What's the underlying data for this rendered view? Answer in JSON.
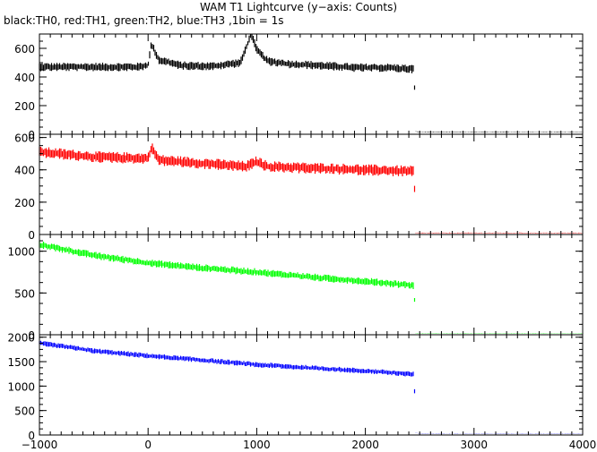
{
  "chart_data": {
    "type": "line",
    "title": "WAM T1 Lightcurve (y−axis: Counts)",
    "subtitle": "black:TH0, red:TH1, green:TH2, blue:TH3 ,1bin = 1s",
    "xlim": [
      -1000,
      4000
    ],
    "x_ticks": [
      -1000,
      0,
      1000,
      2000,
      3000,
      4000
    ],
    "x_tick_labels": [
      "−1000",
      "0",
      "1000",
      "2000",
      "3000",
      "4000"
    ],
    "grid": false,
    "panels": [
      {
        "name": "TH0",
        "color": "#000000",
        "ylim": [
          0,
          700
        ],
        "y_ticks": [
          0,
          200,
          400,
          600
        ],
        "y_tick_labels": [
          "0",
          "200",
          "400",
          "600"
        ],
        "x": [
          -1000,
          -500,
          -100,
          0,
          30,
          100,
          300,
          600,
          850,
          950,
          1000,
          1100,
          1300,
          1600,
          1900,
          2200,
          2450,
          2460,
          2500,
          3000,
          3500,
          4000
        ],
        "values": [
          470,
          470,
          470,
          480,
          630,
          520,
          480,
          475,
          500,
          700,
          590,
          510,
          490,
          480,
          465,
          465,
          455,
          20,
          15,
          15,
          15,
          15
        ],
        "noise": 30
      },
      {
        "name": "TH1",
        "color": "#ff0000",
        "ylim": [
          0,
          620
        ],
        "y_ticks": [
          0,
          200,
          400,
          600
        ],
        "y_tick_labels": [
          "0",
          "200",
          "400",
          "600"
        ],
        "x": [
          -1000,
          -500,
          0,
          30,
          100,
          500,
          900,
          1000,
          1100,
          1500,
          2000,
          2450,
          2460,
          2500,
          3000,
          3500,
          4000
        ],
        "values": [
          510,
          480,
          470,
          540,
          460,
          440,
          420,
          450,
          420,
          410,
          400,
          390,
          10,
          10,
          10,
          10,
          10
        ],
        "noise": 35
      },
      {
        "name": "TH2",
        "color": "#00ff00",
        "ylim": [
          0,
          1200
        ],
        "y_ticks": [
          0,
          500,
          1000
        ],
        "y_tick_labels": [
          "0",
          "500",
          "1000"
        ],
        "x": [
          -1000,
          -500,
          0,
          500,
          1000,
          1500,
          2000,
          2450,
          2460,
          2500,
          3000,
          3500,
          4000
        ],
        "values": [
          1080,
          950,
          860,
          800,
          750,
          690,
          640,
          590,
          15,
          15,
          15,
          15,
          15
        ],
        "noise": 45
      },
      {
        "name": "TH3",
        "color": "#0000ff",
        "ylim": [
          0,
          2050
        ],
        "y_ticks": [
          0,
          500,
          1000,
          1500,
          2000
        ],
        "y_tick_labels": [
          "0",
          "500",
          "1000",
          "1500",
          "2000"
        ],
        "x": [
          -1000,
          -500,
          0,
          500,
          1000,
          1500,
          2000,
          2450,
          2460,
          2500,
          3000,
          3500,
          4000
        ],
        "values": [
          1880,
          1720,
          1620,
          1530,
          1440,
          1370,
          1310,
          1240,
          50,
          20,
          20,
          20,
          20
        ],
        "noise": 55
      }
    ]
  }
}
